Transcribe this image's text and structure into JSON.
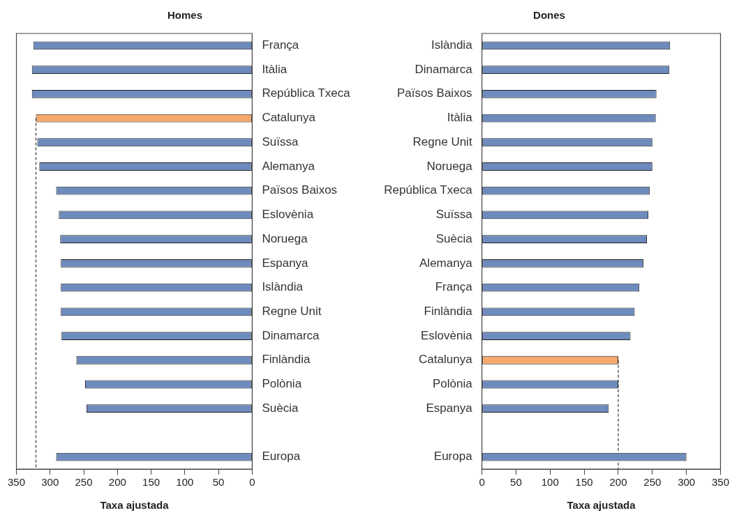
{
  "chart_data": [
    {
      "type": "bar",
      "orientation": "horizontal",
      "title": "Homes",
      "xlabel": "Taxa ajustada",
      "categories": [
        "França",
        "Itàlia",
        "República Txeca",
        "Catalunya",
        "Suïssa",
        "Alemanya",
        "Països Baixos",
        "Eslovènia",
        "Noruega",
        "Espanya",
        "Islàndia",
        "Regne Unit",
        "Dinamarca",
        "Finlàndia",
        "Polònia",
        "Suècia",
        null,
        "Europa"
      ],
      "values": [
        325,
        327,
        327,
        321,
        319,
        316,
        291,
        287,
        285,
        284,
        284,
        284,
        283,
        261,
        248,
        246,
        null,
        291
      ],
      "colors": [
        "#6e8bbd",
        "#6e8bbd",
        "#6e8bbd",
        "#f6a96c",
        "#6e8bbd",
        "#6e8bbd",
        "#6e8bbd",
        "#6e8bbd",
        "#6e8bbd",
        "#6e8bbd",
        "#6e8bbd",
        "#6e8bbd",
        "#6e8bbd",
        "#6e8bbd",
        "#6e8bbd",
        "#6e8bbd",
        "#6e8bbd",
        "#6e8bbd"
      ],
      "xlim": [
        350,
        0
      ],
      "xticks": [
        350,
        300,
        250,
        200,
        150,
        100,
        50,
        0
      ],
      "grid": false,
      "legend": false,
      "ref_lines": [
        {
          "axis": "x",
          "value": 321,
          "line_style": "dashed",
          "color": "#333333"
        }
      ]
    },
    {
      "type": "bar",
      "orientation": "horizontal",
      "title": "Dones",
      "xlabel": "Taxa ajustada",
      "categories": [
        "Islàndia",
        "Dinamarca",
        "Països Baixos",
        "Itàlia",
        "Regne Unit",
        "Noruega",
        "República Txeca",
        "Suïssa",
        "Suècia",
        "Alemanya",
        "França",
        "Finlàndia",
        "Eslovènia",
        "Catalunya",
        "Polònia",
        "Espanya",
        null,
        "Europa"
      ],
      "values": [
        276,
        275,
        256,
        255,
        250,
        250,
        246,
        244,
        242,
        237,
        231,
        224,
        218,
        200,
        200,
        186,
        null,
        300
      ],
      "colors": [
        "#6e8bbd",
        "#6e8bbd",
        "#6e8bbd",
        "#6e8bbd",
        "#6e8bbd",
        "#6e8bbd",
        "#6e8bbd",
        "#6e8bbd",
        "#6e8bbd",
        "#6e8bbd",
        "#6e8bbd",
        "#6e8bbd",
        "#6e8bbd",
        "#f6a96c",
        "#6e8bbd",
        "#6e8bbd",
        "#6e8bbd",
        "#6e8bbd"
      ],
      "xlim": [
        0,
        350
      ],
      "xticks": [
        0,
        50,
        100,
        150,
        200,
        250,
        300,
        350
      ],
      "grid": false,
      "legend": false,
      "ref_lines": [
        {
          "axis": "x",
          "value": 200,
          "line_style": "dashed",
          "color": "#333333"
        }
      ]
    }
  ]
}
